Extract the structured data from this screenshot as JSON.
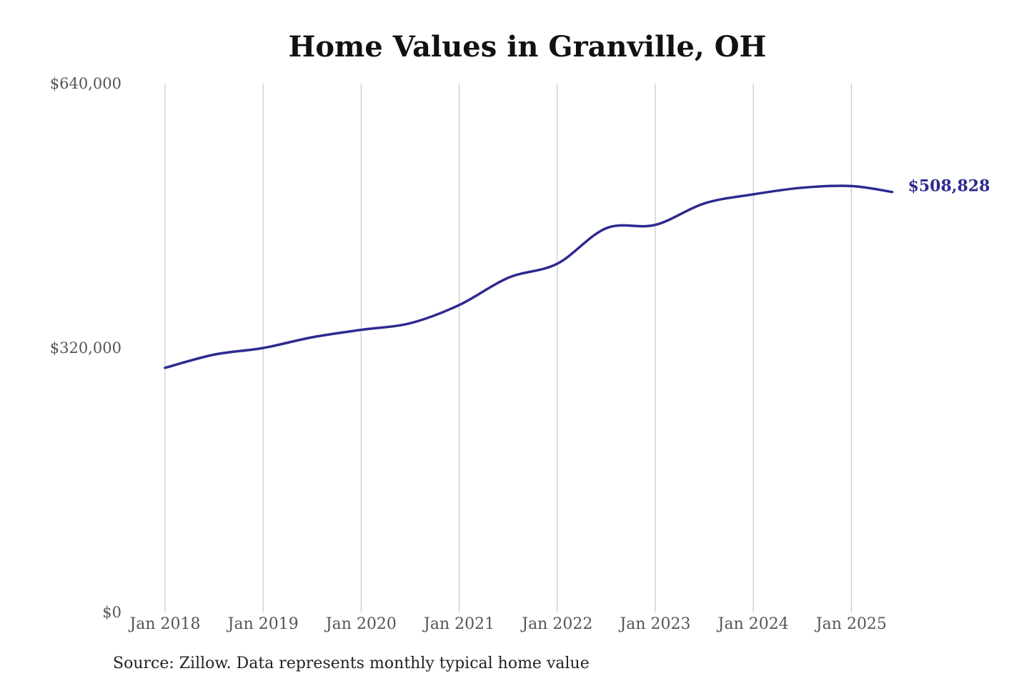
{
  "chart_data": {
    "type": "line",
    "title": "Home Values in Granville, OH",
    "xlabel": "",
    "ylabel": "",
    "ylim": [
      0,
      640000
    ],
    "y_ticks": [
      "$0",
      "$320,000",
      "$640,000"
    ],
    "y_tick_values": [
      0,
      320000,
      640000
    ],
    "x_ticks": [
      "Jan 2018",
      "Jan 2019",
      "Jan 2020",
      "Jan 2021",
      "Jan 2022",
      "Jan 2023",
      "Jan 2024",
      "Jan 2025"
    ],
    "grid": "vertical",
    "line_color": "#2e2a8f",
    "grid_color": "#c8c8c8",
    "series": [
      {
        "x": [
          "2018-01",
          "2018-07",
          "2019-01",
          "2019-07",
          "2020-01",
          "2020-07",
          "2021-01",
          "2021-07",
          "2022-01",
          "2022-07",
          "2023-01",
          "2023-07",
          "2024-01",
          "2024-07",
          "2025-01",
          "2025-06"
        ],
        "values": [
          296000,
          312000,
          320000,
          333000,
          342000,
          350000,
          372000,
          405000,
          422000,
          465000,
          469000,
          495000,
          506000,
          514000,
          516000,
          508828
        ]
      }
    ],
    "end_label": "$508,828",
    "source": "Source: Zillow. Data represents monthly typical home value"
  }
}
